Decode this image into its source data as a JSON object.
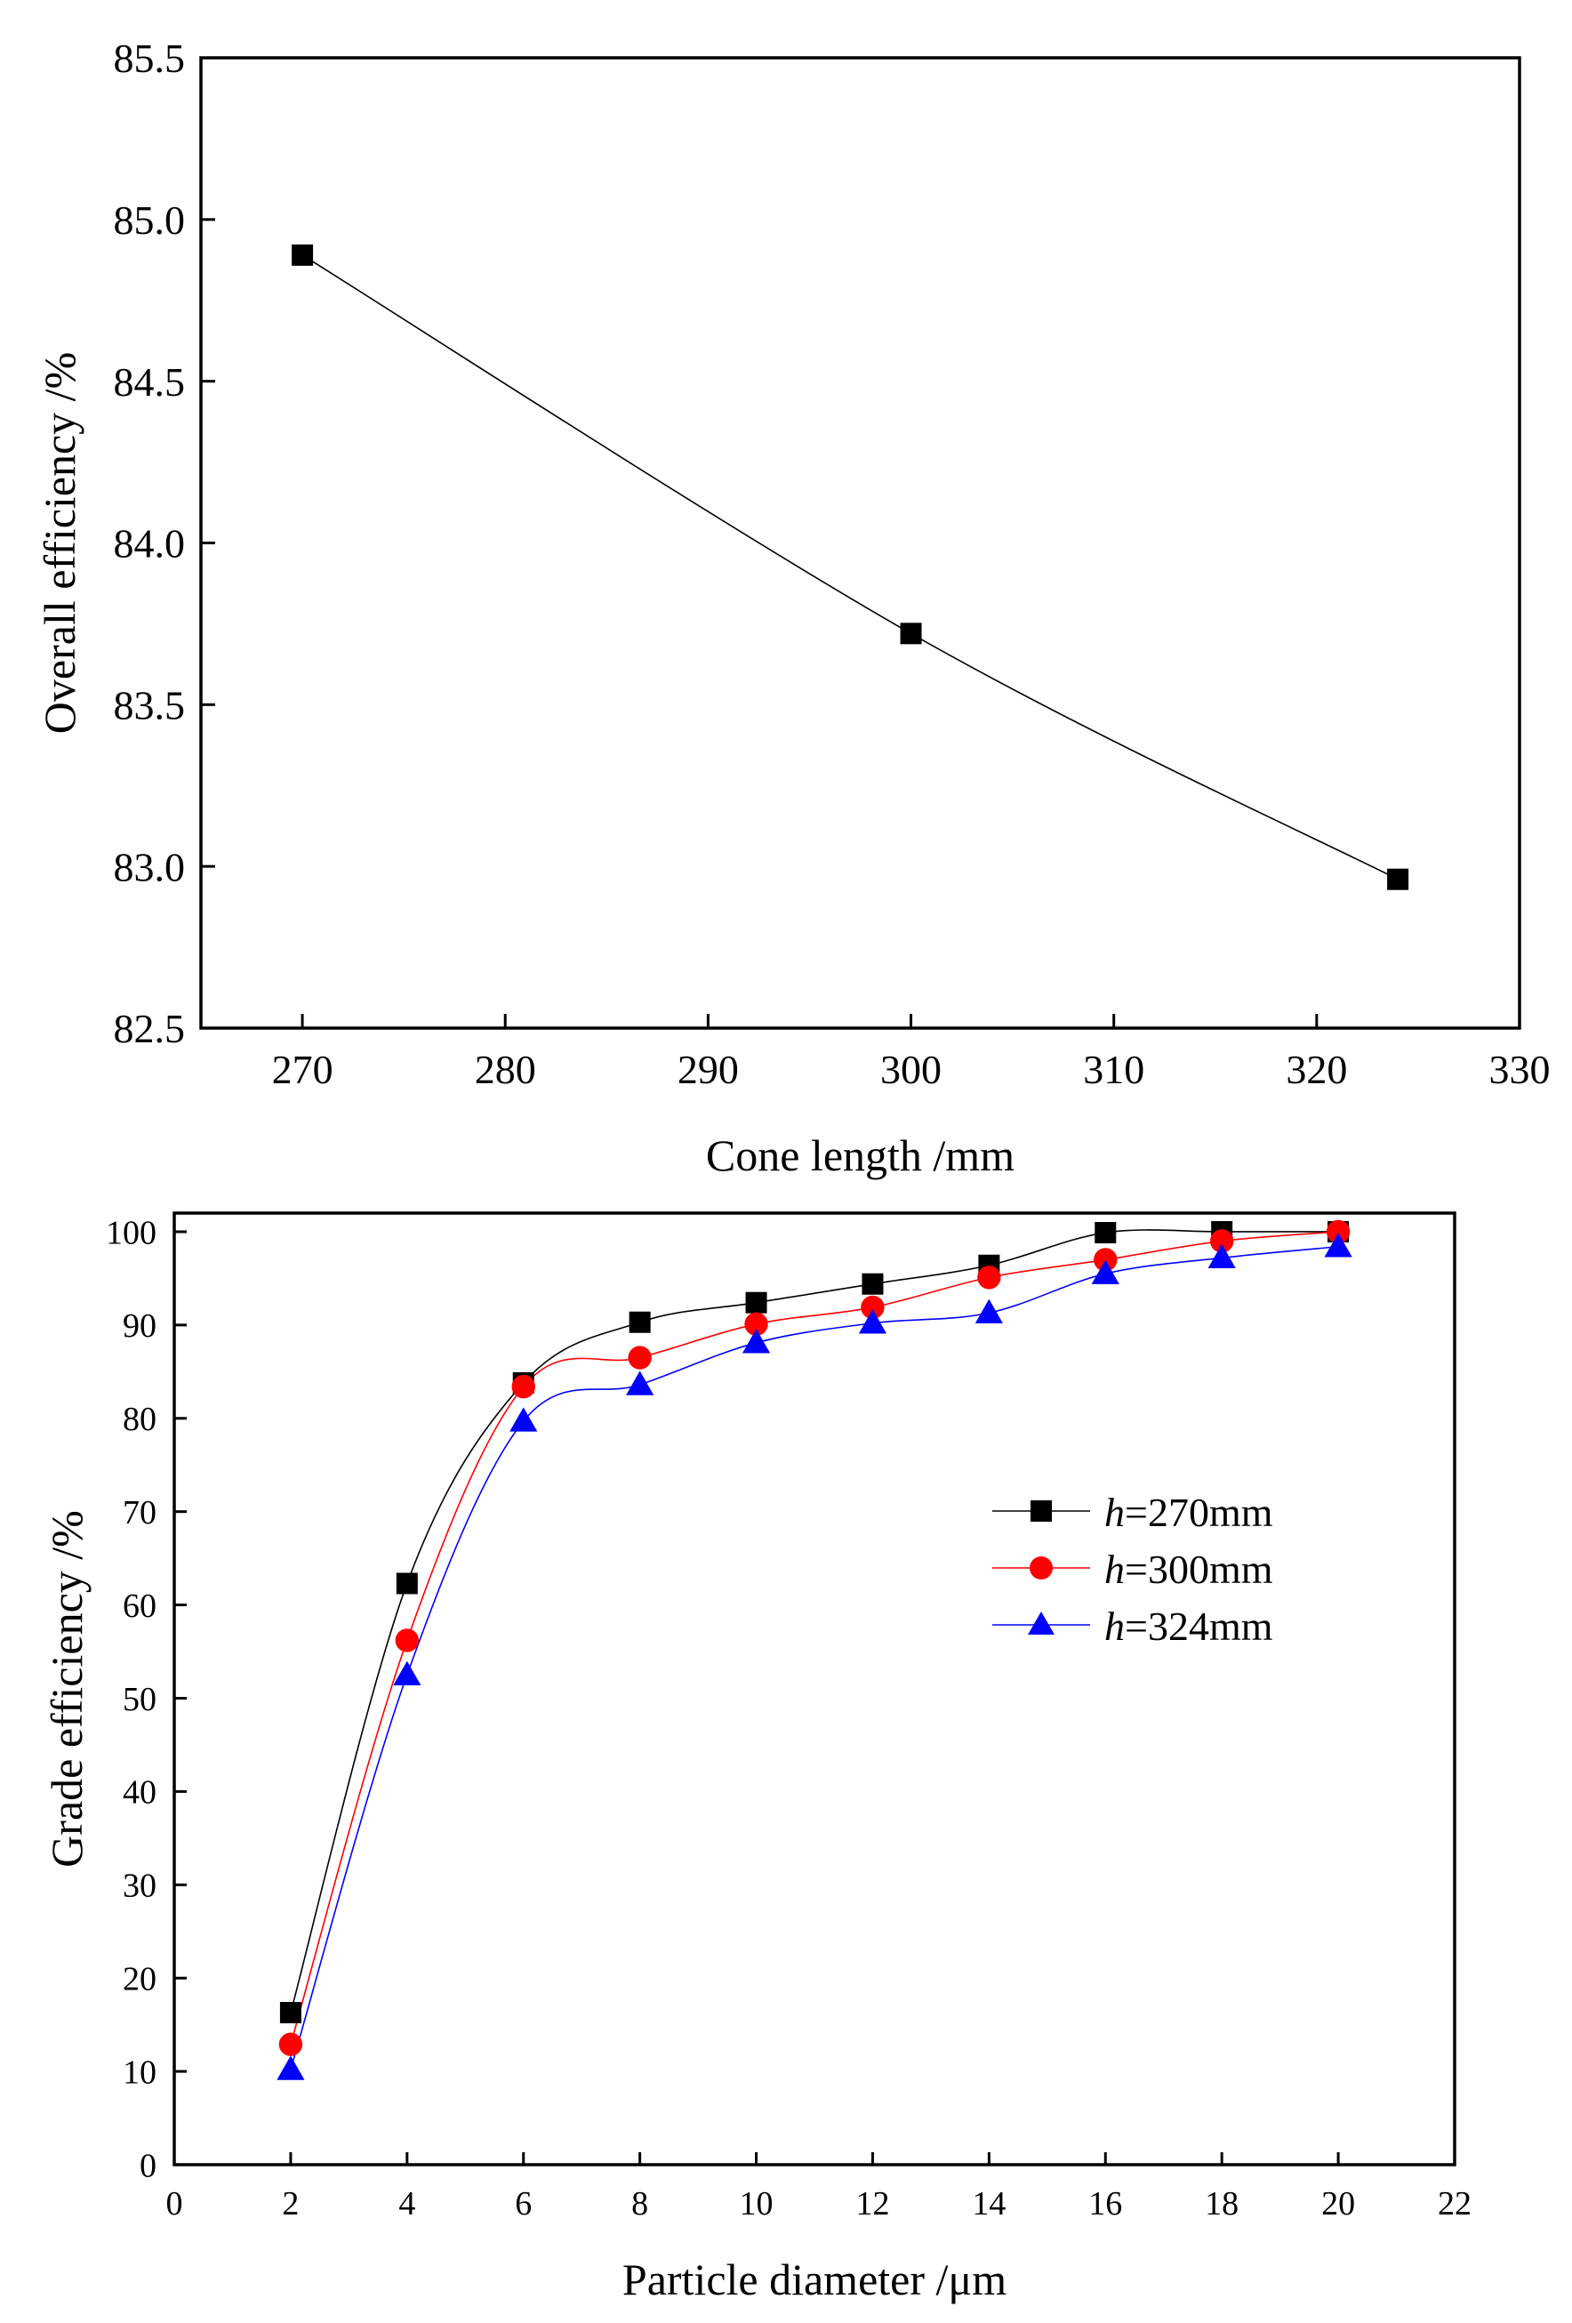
{
  "chart_data": [
    {
      "type": "line",
      "title": "",
      "xlabel": "Cone length /mm",
      "ylabel": "Overall efficiency /%",
      "xlim": [
        265,
        330
      ],
      "ylim": [
        82.5,
        85.5
      ],
      "xticks": [
        270,
        280,
        290,
        300,
        310,
        320,
        330
      ],
      "xtick_labels": [
        "270",
        "280",
        "290",
        "300",
        "310",
        "320",
        "330"
      ],
      "yticks": [
        82.5,
        83.0,
        83.5,
        84.0,
        84.5,
        85.0,
        85.5
      ],
      "ytick_labels": [
        "82.5",
        "83.0",
        "83.5",
        "84.0",
        "84.5",
        "85.0",
        "85.5"
      ],
      "grid": false,
      "series": [
        {
          "name": "Overall efficiency",
          "color": "#000000",
          "marker": "square",
          "x": [
            270,
            300,
            324
          ],
          "y": [
            84.89,
            83.72,
            82.96
          ]
        }
      ]
    },
    {
      "type": "line",
      "title": "",
      "xlabel": "Particle diameter /μm",
      "ylabel": "Grade efficiency /%",
      "xlim": [
        0,
        22
      ],
      "ylim": [
        0,
        102
      ],
      "xticks": [
        0,
        2,
        4,
        6,
        8,
        10,
        12,
        14,
        16,
        18,
        20,
        22
      ],
      "xtick_labels": [
        "0",
        "2",
        "4",
        "6",
        "8",
        "10",
        "12",
        "14",
        "16",
        "18",
        "20",
        "22"
      ],
      "yticks": [
        0,
        10,
        20,
        30,
        40,
        50,
        60,
        70,
        80,
        90,
        100
      ],
      "ytick_labels": [
        "0",
        "10",
        "20",
        "30",
        "40",
        "50",
        "60",
        "70",
        "80",
        "90",
        "100"
      ],
      "grid": false,
      "legend_position": "center-right",
      "series": [
        {
          "name": "h=270mm",
          "legend_prefix": "h",
          "legend_suffix": "=270mm",
          "color": "#000000",
          "marker": "square",
          "x": [
            2,
            4,
            6,
            8,
            10,
            12,
            14,
            16,
            18,
            20
          ],
          "y": [
            16.3,
            62.3,
            83.8,
            90.3,
            92.4,
            94.4,
            96.4,
            99.9,
            100.0,
            100.0
          ]
        },
        {
          "name": "h=300mm",
          "legend_prefix": "h",
          "legend_suffix": "=300mm",
          "color": "#ff0000",
          "marker": "circle",
          "x": [
            2,
            4,
            6,
            8,
            10,
            12,
            14,
            16,
            18,
            20
          ],
          "y": [
            12.9,
            56.2,
            83.4,
            86.5,
            90.1,
            91.9,
            95.1,
            97.0,
            99.0,
            100.0
          ]
        },
        {
          "name": "h=324mm",
          "legend_prefix": "h",
          "legend_suffix": "=324mm",
          "color": "#0000ff",
          "marker": "triangle",
          "x": [
            2,
            4,
            6,
            8,
            10,
            12,
            14,
            16,
            18,
            20
          ],
          "y": [
            10.2,
            52.5,
            79.7,
            83.6,
            88.1,
            90.2,
            91.3,
            95.5,
            97.2,
            98.4
          ]
        }
      ]
    }
  ]
}
